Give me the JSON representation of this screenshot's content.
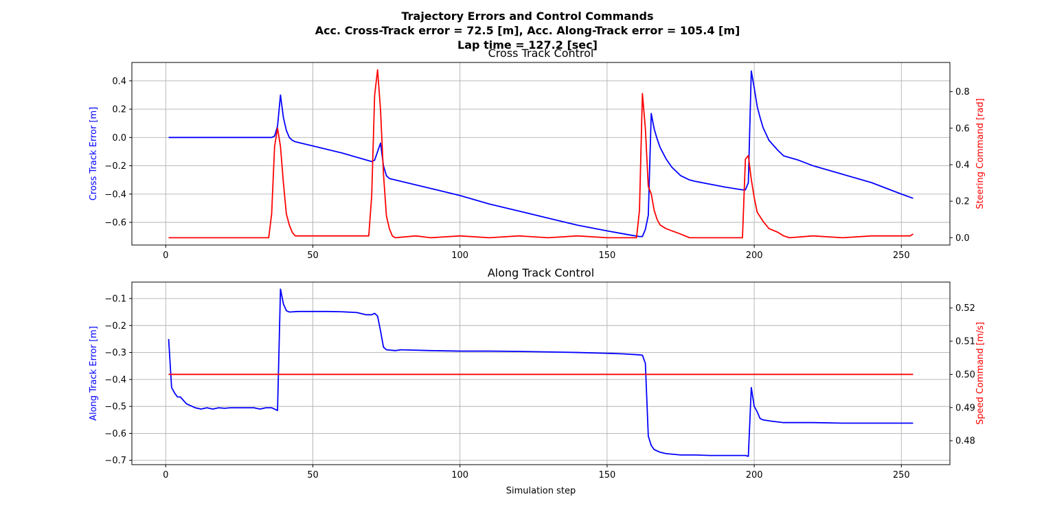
{
  "figure": {
    "title_lines": [
      "Trajectory Errors and Control Commands",
      "Acc. Cross-Track error = 72.5 [m], Acc. Along-Track error = 105.4 [m]",
      "Lap time = 127.2 [sec]"
    ]
  },
  "colors": {
    "error": "#0000ff",
    "command": "#ff0000",
    "grid": "#b0b0b0",
    "text": "#000000"
  },
  "chart_data": [
    {
      "type": "line",
      "title": "Cross Track Control",
      "xlabel": "",
      "xlim": [
        -11.5,
        266.5
      ],
      "xticks": [
        0,
        50,
        100,
        150,
        200,
        250
      ],
      "grid": true,
      "left_axis": {
        "label": "Cross Track Error [m]",
        "color": "#0000ff",
        "ylim": [
          -0.76,
          0.53
        ],
        "ticks": [
          -0.6,
          -0.4,
          -0.2,
          0.0,
          0.2,
          0.4
        ],
        "tick_labels": [
          "−0.6",
          "−0.4",
          "−0.2",
          "0.0",
          "0.2",
          "0.4"
        ]
      },
      "right_axis": {
        "label": "Steering Command [rad]",
        "color": "#ff0000",
        "ylim": [
          -0.04,
          0.96
        ],
        "ticks": [
          0.0,
          0.2,
          0.4,
          0.6,
          0.8
        ],
        "tick_labels": [
          "0.0",
          "0.2",
          "0.4",
          "0.6",
          "0.8"
        ]
      },
      "series": [
        {
          "axis": "left",
          "color": "#0000ff",
          "points": [
            [
              1,
              0.0
            ],
            [
              36,
              0.0
            ],
            [
              37,
              0.01
            ],
            [
              38,
              0.08
            ],
            [
              39,
              0.3
            ],
            [
              40,
              0.14
            ],
            [
              41,
              0.05
            ],
            [
              42,
              0.0
            ],
            [
              43,
              -0.02
            ],
            [
              44,
              -0.03
            ],
            [
              50,
              -0.06
            ],
            [
              60,
              -0.11
            ],
            [
              70,
              -0.17
            ],
            [
              71,
              -0.16
            ],
            [
              72,
              -0.1
            ],
            [
              73,
              -0.04
            ],
            [
              74,
              -0.2
            ],
            [
              75,
              -0.27
            ],
            [
              76,
              -0.29
            ],
            [
              80,
              -0.31
            ],
            [
              90,
              -0.36
            ],
            [
              100,
              -0.41
            ],
            [
              110,
              -0.47
            ],
            [
              120,
              -0.52
            ],
            [
              130,
              -0.57
            ],
            [
              140,
              -0.62
            ],
            [
              150,
              -0.66
            ],
            [
              158,
              -0.69
            ],
            [
              161,
              -0.7
            ],
            [
              162,
              -0.7
            ],
            [
              163,
              -0.65
            ],
            [
              164,
              -0.55
            ],
            [
              165,
              0.17
            ],
            [
              166,
              0.06
            ],
            [
              167,
              -0.01
            ],
            [
              168,
              -0.07
            ],
            [
              170,
              -0.15
            ],
            [
              172,
              -0.21
            ],
            [
              175,
              -0.27
            ],
            [
              178,
              -0.3
            ],
            [
              180,
              -0.31
            ],
            [
              190,
              -0.35
            ],
            [
              196,
              -0.37
            ],
            [
              197,
              -0.37
            ],
            [
              198,
              -0.32
            ],
            [
              199,
              0.47
            ],
            [
              200,
              0.35
            ],
            [
              201,
              0.22
            ],
            [
              202,
              0.14
            ],
            [
              203,
              0.07
            ],
            [
              205,
              -0.02
            ],
            [
              208,
              -0.09
            ],
            [
              210,
              -0.13
            ],
            [
              215,
              -0.16
            ],
            [
              220,
              -0.2
            ],
            [
              230,
              -0.26
            ],
            [
              240,
              -0.32
            ],
            [
              250,
              -0.4
            ],
            [
              254,
              -0.43
            ]
          ]
        },
        {
          "axis": "right",
          "color": "#ff0000",
          "points": [
            [
              1,
              0.0
            ],
            [
              35,
              0.0
            ],
            [
              36,
              0.13
            ],
            [
              37,
              0.5
            ],
            [
              38,
              0.6
            ],
            [
              39,
              0.5
            ],
            [
              40,
              0.3
            ],
            [
              41,
              0.13
            ],
            [
              42,
              0.07
            ],
            [
              43,
              0.03
            ],
            [
              44,
              0.01
            ],
            [
              46,
              0.01
            ],
            [
              69,
              0.01
            ],
            [
              70,
              0.23
            ],
            [
              71,
              0.78
            ],
            [
              72,
              0.92
            ],
            [
              73,
              0.7
            ],
            [
              74,
              0.35
            ],
            [
              75,
              0.12
            ],
            [
              76,
              0.05
            ],
            [
              77,
              0.01
            ],
            [
              78,
              0.0
            ],
            [
              85,
              0.01
            ],
            [
              90,
              0.0
            ],
            [
              100,
              0.01
            ],
            [
              110,
              0.0
            ],
            [
              120,
              0.01
            ],
            [
              130,
              0.0
            ],
            [
              140,
              0.01
            ],
            [
              150,
              0.0
            ],
            [
              160,
              0.0
            ],
            [
              161,
              0.15
            ],
            [
              162,
              0.79
            ],
            [
              163,
              0.6
            ],
            [
              164,
              0.28
            ],
            [
              165,
              0.24
            ],
            [
              166,
              0.15
            ],
            [
              167,
              0.1
            ],
            [
              168,
              0.07
            ],
            [
              170,
              0.05
            ],
            [
              175,
              0.02
            ],
            [
              178,
              0.0
            ],
            [
              190,
              0.0
            ],
            [
              196,
              0.0
            ],
            [
              197,
              0.43
            ],
            [
              198,
              0.45
            ],
            [
              199,
              0.32
            ],
            [
              200,
              0.22
            ],
            [
              201,
              0.14
            ],
            [
              203,
              0.09
            ],
            [
              205,
              0.05
            ],
            [
              208,
              0.03
            ],
            [
              210,
              0.01
            ],
            [
              212,
              0.0
            ],
            [
              220,
              0.01
            ],
            [
              230,
              0.0
            ],
            [
              240,
              0.01
            ],
            [
              250,
              0.01
            ],
            [
              253,
              0.01
            ],
            [
              254,
              0.02
            ]
          ]
        }
      ]
    },
    {
      "type": "line",
      "title": "Along Track Control",
      "xlabel": "Simulation step",
      "xlim": [
        -11.5,
        266.5
      ],
      "xticks": [
        0,
        50,
        100,
        150,
        200,
        250
      ],
      "grid": true,
      "left_axis": {
        "label": "Along Track Error [m]",
        "color": "#0000ff",
        "ylim": [
          -0.716,
          -0.039
        ],
        "ticks": [
          -0.7,
          -0.6,
          -0.5,
          -0.4,
          -0.3,
          -0.2,
          -0.1
        ],
        "tick_labels": [
          "−0.7",
          "−0.6",
          "−0.5",
          "−0.4",
          "−0.3",
          "−0.2",
          "−0.1"
        ]
      },
      "right_axis": {
        "label": "Speed Command [m/s]",
        "color": "#ff0000",
        "ylim": [
          0.4728,
          0.5278
        ],
        "ticks": [
          0.48,
          0.49,
          0.5,
          0.51,
          0.52
        ],
        "tick_labels": [
          "0.48",
          "0.49",
          "0.50",
          "0.51",
          "0.52"
        ]
      },
      "series": [
        {
          "axis": "left",
          "color": "#0000ff",
          "points": [
            [
              1,
              -0.25
            ],
            [
              2,
              -0.43
            ],
            [
              3,
              -0.45
            ],
            [
              4,
              -0.465
            ],
            [
              5,
              -0.465
            ],
            [
              7,
              -0.49
            ],
            [
              10,
              -0.505
            ],
            [
              12,
              -0.51
            ],
            [
              14,
              -0.505
            ],
            [
              16,
              -0.51
            ],
            [
              18,
              -0.505
            ],
            [
              20,
              -0.507
            ],
            [
              22,
              -0.505
            ],
            [
              26,
              -0.505
            ],
            [
              30,
              -0.505
            ],
            [
              32,
              -0.51
            ],
            [
              34,
              -0.505
            ],
            [
              36,
              -0.505
            ],
            [
              37,
              -0.51
            ],
            [
              38,
              -0.515
            ],
            [
              39,
              -0.065
            ],
            [
              40,
              -0.12
            ],
            [
              41,
              -0.145
            ],
            [
              42,
              -0.15
            ],
            [
              45,
              -0.148
            ],
            [
              50,
              -0.148
            ],
            [
              55,
              -0.148
            ],
            [
              60,
              -0.149
            ],
            [
              65,
              -0.152
            ],
            [
              68,
              -0.16
            ],
            [
              70,
              -0.16
            ],
            [
              71,
              -0.155
            ],
            [
              72,
              -0.165
            ],
            [
              73,
              -0.22
            ],
            [
              74,
              -0.28
            ],
            [
              75,
              -0.29
            ],
            [
              78,
              -0.293
            ],
            [
              80,
              -0.29
            ],
            [
              90,
              -0.293
            ],
            [
              100,
              -0.295
            ],
            [
              110,
              -0.295
            ],
            [
              120,
              -0.296
            ],
            [
              130,
              -0.298
            ],
            [
              140,
              -0.3
            ],
            [
              150,
              -0.303
            ],
            [
              155,
              -0.305
            ],
            [
              160,
              -0.308
            ],
            [
              162,
              -0.31
            ],
            [
              163,
              -0.34
            ],
            [
              164,
              -0.61
            ],
            [
              165,
              -0.645
            ],
            [
              166,
              -0.66
            ],
            [
              168,
              -0.67
            ],
            [
              170,
              -0.675
            ],
            [
              175,
              -0.68
            ],
            [
              180,
              -0.68
            ],
            [
              185,
              -0.682
            ],
            [
              190,
              -0.682
            ],
            [
              195,
              -0.682
            ],
            [
              197,
              -0.682
            ],
            [
              198,
              -0.685
            ],
            [
              199,
              -0.43
            ],
            [
              200,
              -0.5
            ],
            [
              201,
              -0.52
            ],
            [
              202,
              -0.545
            ],
            [
              203,
              -0.55
            ],
            [
              206,
              -0.555
            ],
            [
              210,
              -0.56
            ],
            [
              215,
              -0.56
            ],
            [
              220,
              -0.56
            ],
            [
              230,
              -0.562
            ],
            [
              240,
              -0.562
            ],
            [
              250,
              -0.562
            ],
            [
              254,
              -0.562
            ]
          ]
        },
        {
          "axis": "right",
          "color": "#ff0000",
          "points": [
            [
              1,
              0.5
            ],
            [
              254,
              0.5
            ]
          ]
        }
      ]
    }
  ]
}
